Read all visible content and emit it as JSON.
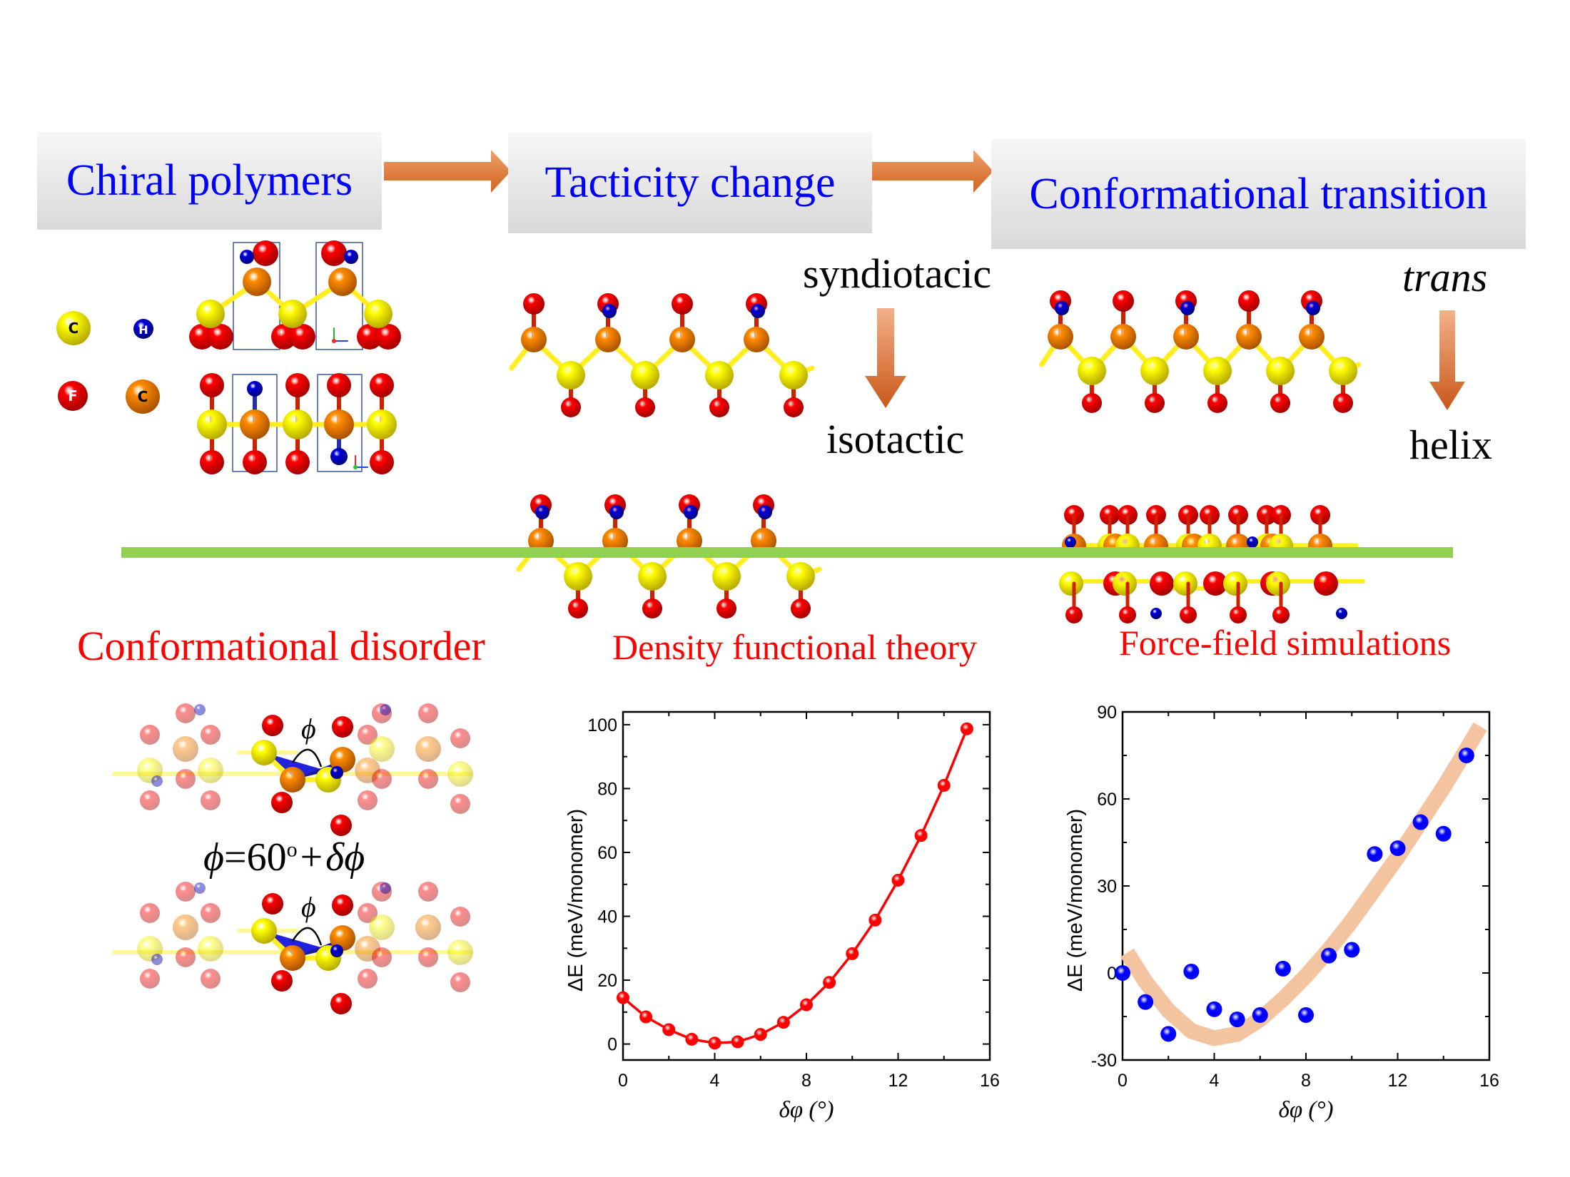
{
  "header": {
    "steps": [
      {
        "label": "Chiral polymers"
      },
      {
        "label": "Tacticity change"
      },
      {
        "label": "Conformational transition"
      }
    ],
    "arrow_color": "#e07a35",
    "box_text_color": "#0000ff"
  },
  "legend": {
    "atoms": [
      {
        "symbol": "C",
        "color": "#ffff00",
        "text_color": "#000000"
      },
      {
        "symbol": "H",
        "color": "#0000cc",
        "text_color": "#ffffff"
      },
      {
        "symbol": "F",
        "color": "#ff0000",
        "text_color": "#ffffff"
      },
      {
        "symbol": "C",
        "color": "#ff8c00",
        "text_color": "#000000"
      }
    ]
  },
  "tacticity": {
    "top_label": "syndiotacic",
    "bottom_label": "isotactic"
  },
  "conformation": {
    "top_label": "trans",
    "bottom_label": "helix"
  },
  "divider_color": "#92d050",
  "bottom": {
    "titles": [
      "Conformational disorder",
      "Density functional theory",
      "Force-field simulations"
    ],
    "phi_symbol": "ϕ",
    "equation": {
      "lhs": "ϕ",
      "eq": "=60",
      "deg": "o",
      "plus": "+",
      "delta": "δϕ"
    }
  },
  "chart_data": [
    {
      "type": "line",
      "title": "Density functional theory",
      "xlabel": "δφ (°)",
      "ylabel": "ΔE (meV/monomer)",
      "xlim": [
        0,
        16
      ],
      "ylim": [
        -5,
        104
      ],
      "xticks": [
        "0",
        "4",
        "8",
        "12",
        "16"
      ],
      "yticks": [
        "0",
        "20",
        "40",
        "60",
        "80",
        "100"
      ],
      "series": [
        {
          "name": "DFT",
          "color": "#ff0000",
          "x": [
            0,
            1,
            2,
            3,
            4,
            5,
            6,
            7,
            8,
            9,
            10,
            11,
            12,
            13,
            14,
            15
          ],
          "y": [
            14.5,
            8.5,
            4.5,
            1.5,
            0.3,
            0.7,
            3.0,
            6.8,
            12.3,
            19.3,
            28.3,
            38.8,
            51.3,
            65.3,
            81.0,
            98.7
          ]
        }
      ]
    },
    {
      "type": "scatter",
      "title": "Force-field simulations",
      "xlabel": "δφ (°)",
      "ylabel": "ΔE (meV/monomer)",
      "xlim": [
        0,
        16
      ],
      "ylim": [
        -30,
        90
      ],
      "xticks": [
        "0",
        "4",
        "8",
        "12",
        "16"
      ],
      "yticks": [
        "-30",
        "0",
        "30",
        "60",
        "90"
      ],
      "series": [
        {
          "name": "Force-field",
          "color": "#0000ff",
          "x": [
            0,
            1,
            2,
            3,
            4,
            5,
            6,
            7,
            8,
            9,
            10,
            11,
            12,
            13,
            14,
            15
          ],
          "y": [
            0,
            -10,
            -21,
            0.5,
            -12.5,
            -16,
            -14.5,
            1.5,
            -14.5,
            6,
            8,
            41,
            43,
            52,
            48,
            75
          ]
        },
        {
          "name": "fit",
          "color": "#f4c3a0",
          "x": [
            0.2,
            1,
            2,
            3,
            4,
            5,
            6,
            7,
            8,
            9,
            10,
            11,
            12,
            13,
            14,
            15,
            15.6
          ],
          "y": [
            7,
            -3,
            -13,
            -20,
            -22.5,
            -21,
            -16,
            -9,
            -1,
            8,
            18,
            29,
            40,
            52,
            64,
            77,
            85
          ]
        }
      ]
    }
  ]
}
